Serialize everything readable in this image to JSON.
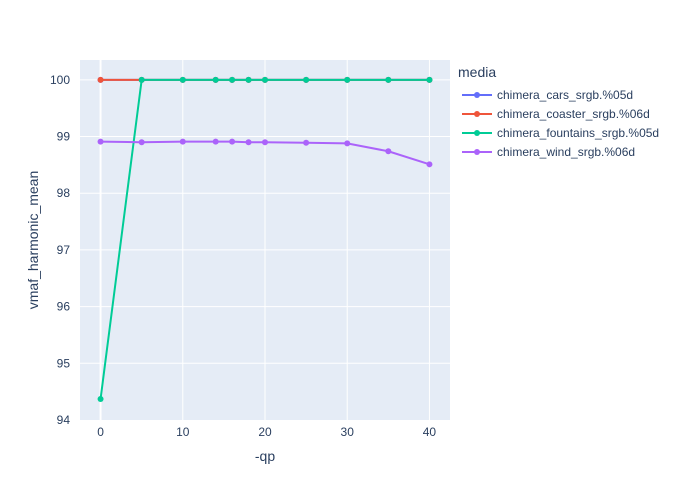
{
  "chart_data": {
    "type": "line",
    "title": "",
    "xlabel": "-qp",
    "ylabel": "vmaf_harmonic_mean",
    "xlim": [
      -2.5,
      42.5
    ],
    "ylim": [
      94,
      100.35
    ],
    "xticks": [
      0,
      10,
      20,
      30,
      40
    ],
    "yticks": [
      94,
      95,
      96,
      97,
      98,
      99,
      100
    ],
    "x": [
      0,
      5,
      10,
      14,
      16,
      18,
      20,
      25,
      30,
      35,
      40
    ],
    "legend": {
      "title": "media",
      "placement": "right"
    },
    "grid": true,
    "series": [
      {
        "name": "chimera_cars_srgb.%05d",
        "color": "#636efa",
        "values": [
          100,
          100,
          100,
          100,
          100,
          100,
          100,
          100,
          100,
          100,
          100
        ]
      },
      {
        "name": "chimera_coaster_srgb.%06d",
        "color": "#ef553b",
        "values": [
          100,
          100,
          100,
          100,
          100,
          100,
          100,
          100,
          100,
          100,
          100
        ]
      },
      {
        "name": "chimera_fountains_srgb.%05d",
        "color": "#00cc96",
        "values": [
          94.37,
          100,
          100,
          100,
          100,
          100,
          100,
          100,
          100,
          100,
          100
        ]
      },
      {
        "name": "chimera_wind_srgb.%06d",
        "color": "#ab63fa",
        "values": [
          98.91,
          98.9,
          98.91,
          98.91,
          98.91,
          98.9,
          98.9,
          98.89,
          98.88,
          98.74,
          98.51
        ]
      }
    ]
  }
}
